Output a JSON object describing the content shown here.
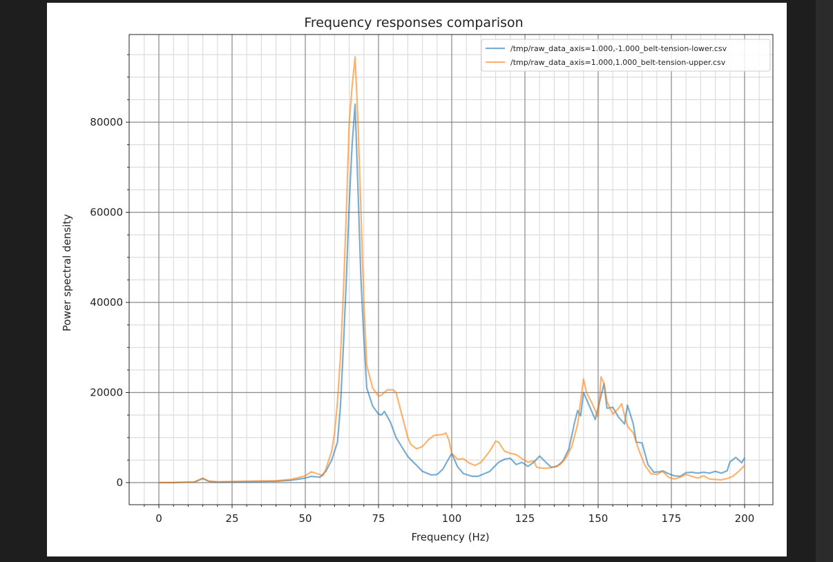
{
  "chart_data": {
    "type": "line",
    "title": "Frequency responses comparison",
    "xlabel": "Frequency (Hz)",
    "ylabel": "Power spectral density",
    "xlim": [
      -10,
      210
    ],
    "ylim": [
      -4800,
      99500
    ],
    "xticks": [
      0,
      25,
      50,
      75,
      100,
      125,
      150,
      175,
      200
    ],
    "xtick_labels": [
      "0",
      "25",
      "50",
      "75",
      "100",
      "125",
      "150",
      "175",
      "200"
    ],
    "yticks": [
      0,
      20000,
      40000,
      60000,
      80000
    ],
    "ytick_labels": [
      "0",
      "20000",
      "40000",
      "60000",
      "80000"
    ],
    "x_minor_step": 5,
    "y_minor_step": 5000,
    "grid": true,
    "legend_position": "top-right",
    "series": [
      {
        "name": "/tmp/raw_data_axis=1.000,-1.000_belt-tension-lower.csv",
        "color": "#1f77b4",
        "x": [
          0,
          5,
          10,
          12,
          15,
          17,
          20,
          30,
          40,
          45,
          50,
          52,
          55,
          57,
          59,
          61,
          62,
          63,
          64,
          65,
          66,
          67,
          68,
          69,
          70,
          71,
          73,
          75,
          76,
          77,
          79,
          81,
          85,
          90,
          93,
          95,
          97,
          100,
          102,
          104,
          107,
          109,
          113,
          116,
          118,
          120,
          122,
          124,
          126,
          128,
          130,
          132,
          134,
          136,
          138,
          140,
          142,
          143,
          144,
          145,
          147,
          149,
          152,
          153,
          155,
          157,
          159,
          160,
          162,
          163,
          165,
          167,
          169,
          171,
          172,
          174,
          176,
          178,
          180,
          182,
          184,
          186,
          188,
          190,
          192,
          194,
          195,
          197,
          199,
          200
        ],
        "y": [
          0,
          0,
          100,
          100,
          900,
          300,
          100,
          200,
          300,
          500,
          1000,
          1400,
          1200,
          2500,
          5000,
          9000,
          17000,
          30000,
          45000,
          62000,
          75000,
          84000,
          65000,
          45000,
          32000,
          21000,
          17000,
          15200,
          15000,
          15800,
          13500,
          10000,
          5800,
          2500,
          1700,
          1800,
          3000,
          6500,
          3500,
          2000,
          1400,
          1400,
          2500,
          4500,
          5200,
          5400,
          4000,
          4500,
          3600,
          4500,
          5900,
          4600,
          3400,
          3600,
          4800,
          7500,
          13500,
          16000,
          14800,
          20000,
          17000,
          14000,
          22000,
          16500,
          16700,
          14500,
          13000,
          17200,
          13000,
          9000,
          8800,
          4000,
          2300,
          2400,
          2600,
          2000,
          1500,
          1400,
          2200,
          2300,
          2100,
          2300,
          2100,
          2500,
          2100,
          2600,
          4600,
          5600,
          4400,
          5500
        ]
      },
      {
        "name": "/tmp/raw_data_axis=1.000,1.000_belt-tension-upper.csv",
        "color": "#ff7f0e",
        "x": [
          0,
          5,
          10,
          12,
          15,
          17,
          20,
          30,
          40,
          45,
          50,
          52,
          54,
          56,
          57,
          59,
          60,
          61,
          62,
          63,
          64,
          65,
          66,
          67,
          68,
          69,
          70,
          71,
          73,
          75,
          76,
          78,
          80,
          81,
          83,
          85,
          86,
          88,
          90,
          92,
          94,
          97,
          98,
          99,
          100,
          102,
          104,
          106,
          108,
          110,
          113,
          115,
          116,
          118,
          120,
          122,
          124,
          126,
          128,
          129,
          131,
          133,
          135,
          137,
          139,
          141,
          143,
          145,
          146,
          148,
          150,
          151,
          152,
          153,
          155,
          157,
          158,
          160,
          162,
          164,
          166,
          168,
          170,
          172,
          174,
          176,
          178,
          180,
          184,
          186,
          188,
          192,
          194,
          196,
          198,
          200
        ],
        "y": [
          0,
          0,
          100,
          100,
          1000,
          300,
          200,
          300,
          400,
          700,
          1500,
          2400,
          2000,
          1500,
          3000,
          7000,
          11000,
          18000,
          28000,
          42000,
          60000,
          80000,
          88000,
          94500,
          80000,
          60000,
          40000,
          26000,
          21000,
          19200,
          19400,
          20600,
          20600,
          20000,
          15000,
          10000,
          8500,
          7500,
          8000,
          9500,
          10500,
          10700,
          11000,
          9500,
          6500,
          5200,
          5300,
          4300,
          3800,
          4500,
          7000,
          9200,
          9000,
          7000,
          6500,
          6200,
          5300,
          4500,
          4800,
          3400,
          3200,
          3200,
          3500,
          4000,
          5500,
          8000,
          13000,
          23000,
          20000,
          17500,
          14500,
          23500,
          22000,
          18000,
          15200,
          16500,
          17500,
          12500,
          11000,
          7000,
          3800,
          2000,
          1800,
          2500,
          1200,
          800,
          1200,
          1800,
          1000,
          1500,
          800,
          600,
          900,
          1400,
          2500,
          3800
        ]
      }
    ]
  }
}
